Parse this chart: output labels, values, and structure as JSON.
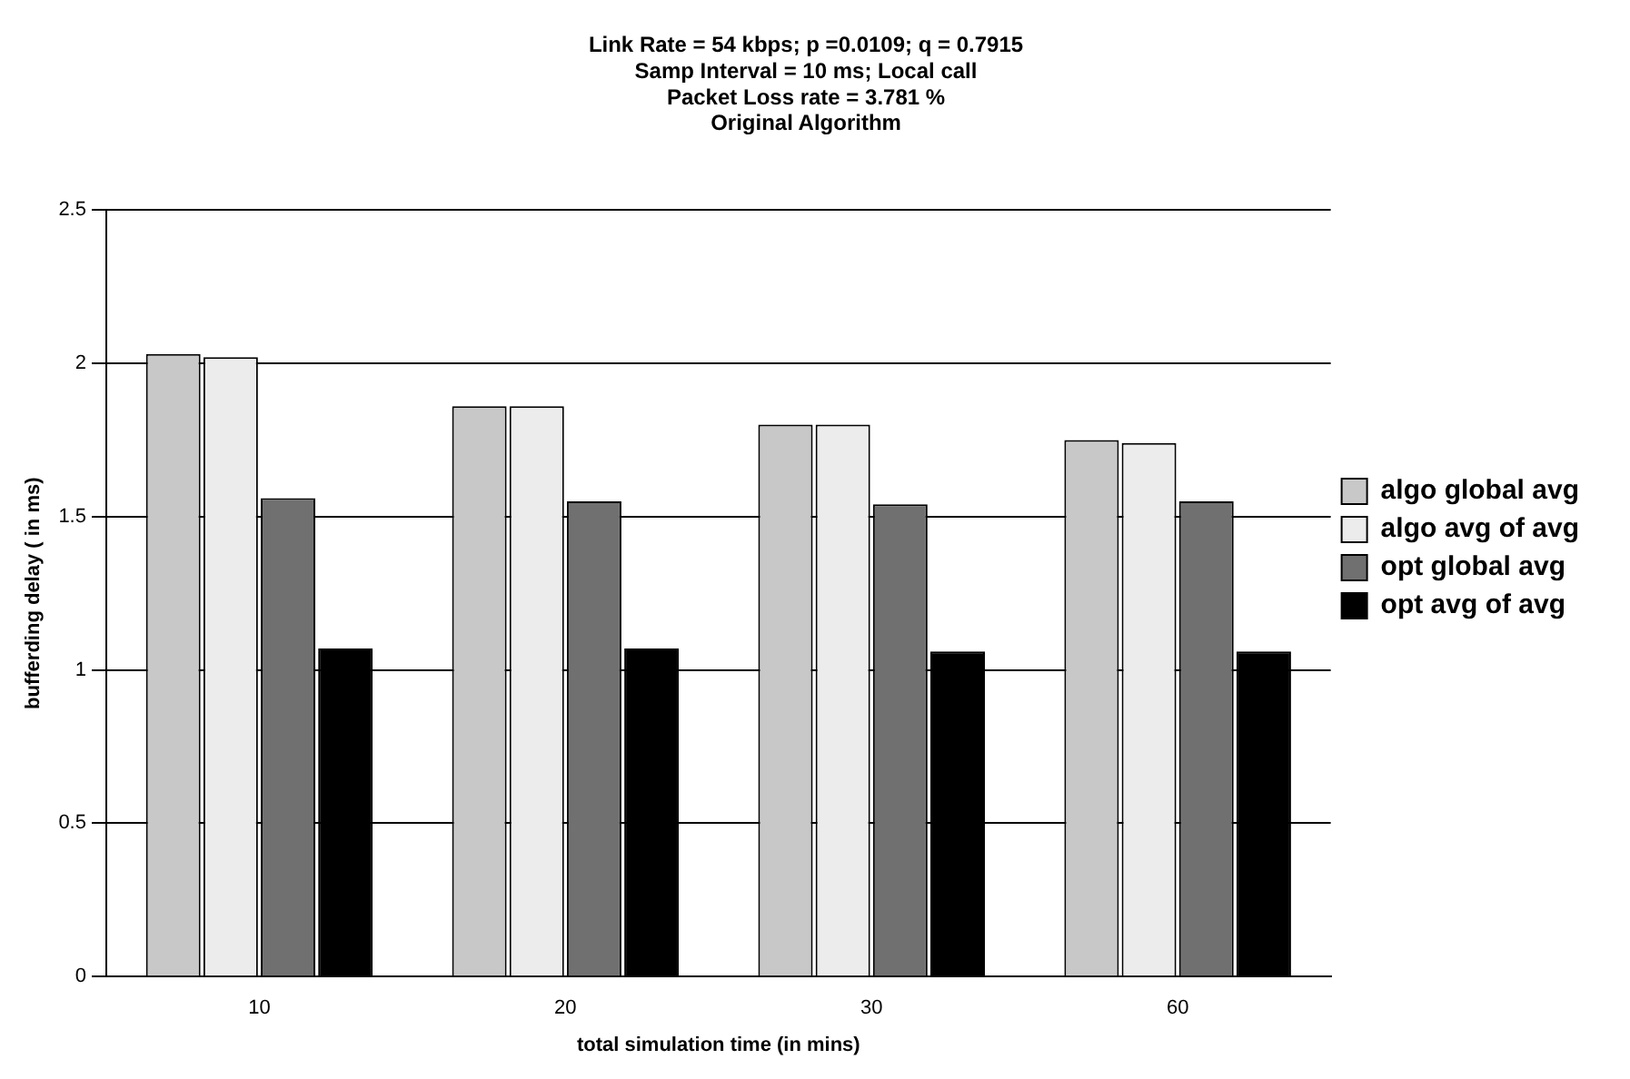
{
  "chart_data": {
    "type": "bar",
    "title": "Link Rate = 54 kbps; p =0.0109; q = 0.7915\nSamp Interval = 10 ms; Local call\nPacket Loss rate = 3.781 %\nOriginal Algorithm",
    "xlabel": "total simulation time (in mins)",
    "ylabel": "bufferding delay ( in ms)",
    "categories": [
      "10",
      "20",
      "30",
      "60"
    ],
    "series": [
      {
        "name": "algo global avg",
        "color": "#c8c8c8",
        "values": [
          2.03,
          1.86,
          1.8,
          1.75
        ]
      },
      {
        "name": "algo avg of avg",
        "color": "#ececec",
        "values": [
          2.02,
          1.86,
          1.8,
          1.74
        ]
      },
      {
        "name": "opt global avg",
        "color": "#707070",
        "values": [
          1.56,
          1.55,
          1.54,
          1.55
        ]
      },
      {
        "name": "opt avg of avg",
        "color": "#000000",
        "values": [
          1.07,
          1.07,
          1.06,
          1.06
        ]
      }
    ],
    "ylim": [
      0,
      2.5
    ],
    "yticks": [
      0,
      0.5,
      1,
      1.5,
      2,
      2.5
    ],
    "grid": "y",
    "legend": "right"
  }
}
